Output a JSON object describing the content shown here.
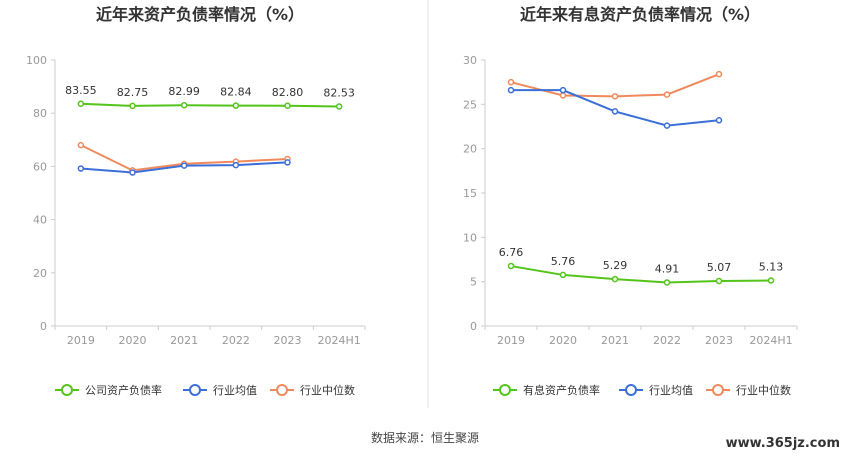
{
  "chart_data": [
    {
      "type": "line",
      "title": "近年来资产负债率情况（%）",
      "categories": [
        "2019",
        "2020",
        "2021",
        "2022",
        "2023",
        "2024H1"
      ],
      "ylim": [
        0,
        100
      ],
      "yticks": [
        "0",
        "20",
        "40",
        "60",
        "80",
        "100"
      ],
      "grid": false,
      "legend_position": "bottom",
      "series": [
        {
          "name": "公司资产负债率",
          "color": "#52c41a",
          "values": [
            83.55,
            82.75,
            82.99,
            82.84,
            82.8,
            82.53
          ],
          "labels": [
            "83.55",
            "82.75",
            "82.99",
            "82.84",
            "82.80",
            "82.53"
          ]
        },
        {
          "name": "行业均值",
          "color": "#3b6fd8",
          "values": [
            59.2,
            57.7,
            60.3,
            60.5,
            61.5,
            null
          ]
        },
        {
          "name": "行业中位数",
          "color": "#f08a5d",
          "values": [
            68.0,
            58.5,
            61.0,
            61.8,
            62.8,
            null
          ]
        }
      ]
    },
    {
      "type": "line",
      "title": "近年来有息资产负债率情况（%）",
      "categories": [
        "2019",
        "2020",
        "2021",
        "2022",
        "2023",
        "2024H1"
      ],
      "ylim": [
        0,
        30
      ],
      "yticks": [
        "0",
        "5",
        "10",
        "15",
        "20",
        "25",
        "30"
      ],
      "grid": false,
      "legend_position": "bottom",
      "series": [
        {
          "name": "有息资产负债率",
          "color": "#52c41a",
          "values": [
            6.76,
            5.76,
            5.29,
            4.91,
            5.07,
            5.13
          ],
          "labels": [
            "6.76",
            "5.76",
            "5.29",
            "4.91",
            "5.07",
            "5.13"
          ]
        },
        {
          "name": "行业均值",
          "color": "#3b6fd8",
          "values": [
            26.6,
            26.6,
            24.2,
            22.6,
            23.2,
            null
          ]
        },
        {
          "name": "行业中位数",
          "color": "#f08a5d",
          "values": [
            27.5,
            26.0,
            25.9,
            26.1,
            28.4,
            null
          ]
        }
      ]
    }
  ],
  "footer": {
    "source": "数据来源：恒生聚源",
    "watermark": "www.365jz.com"
  },
  "colors": {
    "axis": "#cccccc",
    "divider": "#e6e6e6"
  }
}
